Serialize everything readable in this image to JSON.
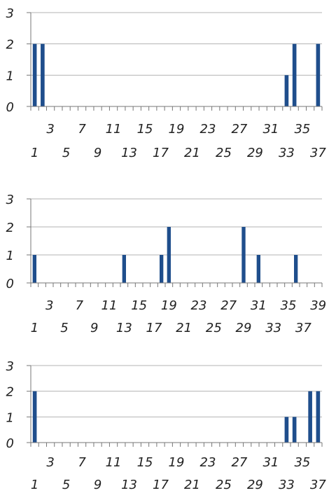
{
  "colors": {
    "bar": "#1f4e8c",
    "grid": "#b3b3b3",
    "axis": "#777777",
    "text": "#222222"
  },
  "chart_data": [
    {
      "type": "bar",
      "title": "",
      "xlabel": "",
      "ylabel": "",
      "ylim": [
        0,
        3
      ],
      "y_ticks": [
        0,
        1,
        2,
        3
      ],
      "grid": true,
      "legend": "none",
      "x_range": [
        1,
        37
      ],
      "x_labels_row1": [
        3,
        7,
        11,
        15,
        19,
        23,
        27,
        31,
        35
      ],
      "x_labels_row2": [
        1,
        5,
        9,
        13,
        17,
        21,
        25,
        29,
        33,
        37
      ],
      "bars": [
        {
          "x": 1,
          "value": 2
        },
        {
          "x": 2,
          "value": 2
        },
        {
          "x": 33,
          "value": 1
        },
        {
          "x": 34,
          "value": 2
        },
        {
          "x": 37,
          "value": 2
        }
      ]
    },
    {
      "type": "bar",
      "title": "",
      "xlabel": "",
      "ylabel": "",
      "ylim": [
        0,
        3
      ],
      "y_ticks": [
        0,
        1,
        2,
        3
      ],
      "grid": true,
      "legend": "none",
      "x_range": [
        1,
        39
      ],
      "x_labels_row1": [
        3,
        7,
        11,
        15,
        19,
        23,
        27,
        31,
        35,
        39
      ],
      "x_labels_row2": [
        1,
        5,
        9,
        13,
        17,
        21,
        25,
        29,
        33,
        37
      ],
      "bars": [
        {
          "x": 1,
          "value": 1
        },
        {
          "x": 13,
          "value": 1
        },
        {
          "x": 18,
          "value": 1
        },
        {
          "x": 19,
          "value": 2
        },
        {
          "x": 29,
          "value": 2
        },
        {
          "x": 31,
          "value": 1
        },
        {
          "x": 36,
          "value": 1
        }
      ]
    },
    {
      "type": "bar",
      "title": "",
      "xlabel": "",
      "ylabel": "",
      "ylim": [
        0,
        3
      ],
      "y_ticks": [
        0,
        1,
        2,
        3
      ],
      "grid": true,
      "legend": "none",
      "x_range": [
        1,
        37
      ],
      "x_labels_row1": [
        3,
        7,
        11,
        15,
        19,
        23,
        27,
        31,
        35
      ],
      "x_labels_row2": [
        1,
        5,
        9,
        13,
        17,
        21,
        25,
        29,
        33,
        37
      ],
      "bars": [
        {
          "x": 1,
          "value": 2
        },
        {
          "x": 33,
          "value": 1
        },
        {
          "x": 34,
          "value": 1
        },
        {
          "x": 36,
          "value": 2
        },
        {
          "x": 37,
          "value": 2
        }
      ]
    }
  ]
}
